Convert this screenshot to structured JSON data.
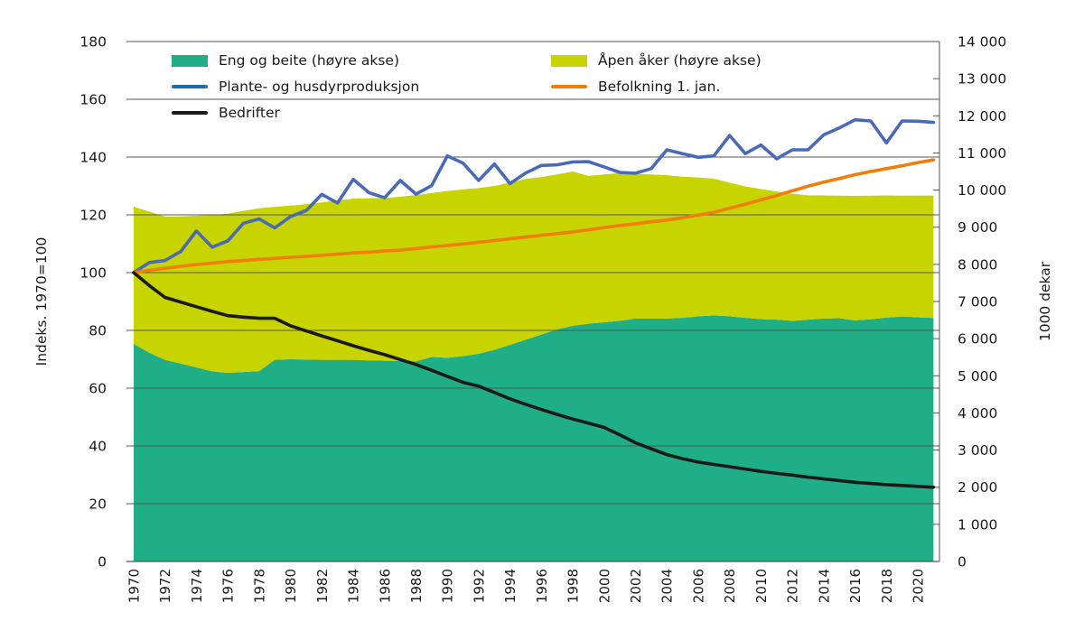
{
  "chart_data": {
    "type": "area+line",
    "ylabel_left": "Indeks. 1970=100",
    "ylabel_right": "1000 dekar",
    "ylim_left": [
      0,
      180
    ],
    "ylim_right": [
      0,
      14000
    ],
    "yticks_left": [
      "0",
      "20",
      "40",
      "60",
      "80",
      "100",
      "120",
      "140",
      "160",
      "180"
    ],
    "yticks_right": [
      "0",
      "1 000",
      "2 000",
      "3 000",
      "4 000",
      "5 000",
      "6 000",
      "7 000",
      "8 000",
      "9 000",
      "10 000",
      "11 000",
      "12 000",
      "13 000",
      "14 000"
    ],
    "grid": "horizontal",
    "legend_placement": "top",
    "x": [
      1970,
      1971,
      1972,
      1973,
      1974,
      1975,
      1976,
      1977,
      1978,
      1979,
      1980,
      1981,
      1982,
      1983,
      1984,
      1985,
      1986,
      1987,
      1988,
      1989,
      1990,
      1991,
      1992,
      1993,
      1994,
      1995,
      1996,
      1997,
      1998,
      1999,
      2000,
      2001,
      2002,
      2003,
      2004,
      2005,
      2006,
      2007,
      2008,
      2009,
      2010,
      2011,
      2012,
      2013,
      2014,
      2015,
      2016,
      2017,
      2018,
      2019,
      2020,
      2021
    ],
    "xticks": [
      "1970",
      "1972",
      "1974",
      "1976",
      "1978",
      "1980",
      "1982",
      "1984",
      "1986",
      "1988",
      "1990",
      "1992",
      "1994",
      "1996",
      "1998",
      "2000",
      "2002",
      "2004",
      "2006",
      "2008",
      "2010",
      "2012",
      "2014",
      "2016",
      "2018",
      "2020"
    ],
    "areas_stacked_right_axis": [
      {
        "name": "Eng og beite (høyre akse)",
        "color": "#20ae86",
        "values": [
          5857,
          5620,
          5430,
          5330,
          5227,
          5120,
          5079,
          5100,
          5126,
          5430,
          5444,
          5437,
          5430,
          5430,
          5430,
          5415,
          5406,
          5400,
          5390,
          5507,
          5483,
          5530,
          5592,
          5700,
          5834,
          5970,
          6114,
          6250,
          6347,
          6400,
          6440,
          6480,
          6541,
          6541,
          6541,
          6560,
          6603,
          6626,
          6603,
          6560,
          6526,
          6510,
          6480,
          6510,
          6541,
          6550,
          6494,
          6520,
          6565,
          6596,
          6575,
          6557
        ]
      },
      {
        "name": "Åpen åker (høyre akse)",
        "color": "#c8d400",
        "values": [
          3695,
          3800,
          3854,
          3960,
          4082,
          4210,
          4285,
          4340,
          4384,
          4120,
          4139,
          4183,
          4237,
          4290,
          4341,
          4365,
          4381,
          4420,
          4478,
          4413,
          4490,
          4490,
          4462,
          4410,
          4366,
          4330,
          4236,
          4170,
          4153,
          3980,
          3980,
          3980,
          3899,
          3879,
          3859,
          3800,
          3737,
          3684,
          3597,
          3540,
          3504,
          3450,
          3420,
          3350,
          3314,
          3300,
          3351,
          3330,
          3290,
          3254,
          3277,
          3295
        ]
      }
    ],
    "lines_left_axis": [
      {
        "name": "Plante- og husdyrproduksjon",
        "color": "#4a6ab8",
        "legend_color": "#1f6fb0",
        "values": [
          100,
          103.5,
          104.2,
          107.3,
          114.4,
          108.8,
          111,
          117.1,
          118.6,
          115.5,
          119.4,
          121.5,
          127.1,
          124.1,
          132.3,
          127.7,
          125.9,
          131.9,
          127.2,
          130.1,
          140.4,
          137.9,
          131.9,
          137.6,
          130.8,
          134.5,
          137.1,
          137.3,
          138.3,
          138.4,
          136.6,
          134.7,
          134.4,
          136,
          142.5,
          141.2,
          139.9,
          140.4,
          147.5,
          141.2,
          144.2,
          139.4,
          142.5,
          142.5,
          147.7,
          150.1,
          152.9,
          152.5,
          144.9,
          152.5,
          152.4,
          152
        ]
      },
      {
        "name": "Befolkning 1. jan.",
        "color": "#f07f09",
        "values": [
          100,
          100.8,
          101.5,
          102.2,
          102.8,
          103.3,
          103.8,
          104.2,
          104.6,
          104.9,
          105.3,
          105.6,
          106,
          106.4,
          106.8,
          107.1,
          107.5,
          107.8,
          108.3,
          108.9,
          109.4,
          109.9,
          110.5,
          111.1,
          111.7,
          112.3,
          112.9,
          113.5,
          114.1,
          114.8,
          115.6,
          116.3,
          116.9,
          117.6,
          118.2,
          119,
          119.9,
          120.9,
          122.3,
          123.7,
          125.2,
          126.7,
          128.3,
          129.9,
          131.3,
          132.6,
          133.9,
          135,
          136,
          137,
          138.1,
          139
        ]
      },
      {
        "name": "Bedrifter",
        "color": "#1a1a1a",
        "values": [
          100,
          95.5,
          91.4,
          89.8,
          88.2,
          86.6,
          85.1,
          84.6,
          84.2,
          84.2,
          81.6,
          79.8,
          78.1,
          76.4,
          74.7,
          73.1,
          71.6,
          69.9,
          68.2,
          66.2,
          64.1,
          62,
          60.7,
          58.5,
          56.3,
          54.4,
          52.6,
          50.9,
          49.3,
          47.9,
          46.4,
          43.8,
          41.1,
          39,
          37,
          35.6,
          34.4,
          33.6,
          32.8,
          32,
          31.2,
          30.5,
          29.9,
          29.2,
          28.6,
          28,
          27.4,
          27,
          26.6,
          26.3,
          26,
          25.7
        ]
      }
    ]
  }
}
